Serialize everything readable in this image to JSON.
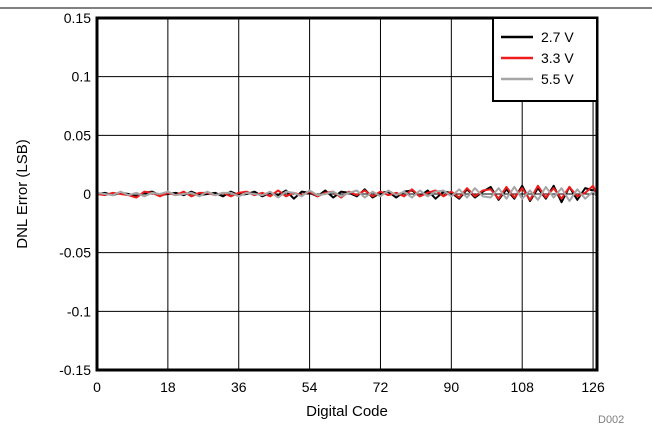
{
  "chart_data": {
    "type": "line",
    "xlabel": "Digital Code",
    "ylabel": "DNL Error (LSB)",
    "footnote": "D002",
    "xlim": [
      0,
      127
    ],
    "ylim": [
      -0.15,
      0.15
    ],
    "x_ticks": [
      0,
      18,
      36,
      54,
      72,
      90,
      108,
      126
    ],
    "y_ticks": [
      0.15,
      0.1,
      0.05,
      0,
      -0.05,
      -0.1,
      -0.15
    ],
    "y_tick_labels": [
      "0.15",
      "0.1",
      "0.05",
      "0",
      "-0.05",
      "-0.1",
      "-0.15"
    ],
    "grid": true,
    "legend_position": "top-right",
    "series": [
      {
        "name": "2.7 V",
        "color": "#000000",
        "x": [
          0,
          2,
          4,
          6,
          8,
          10,
          12,
          14,
          16,
          18,
          20,
          22,
          24,
          26,
          28,
          30,
          32,
          34,
          36,
          38,
          40,
          42,
          44,
          46,
          48,
          50,
          52,
          54,
          56,
          58,
          60,
          62,
          64,
          66,
          68,
          70,
          72,
          74,
          76,
          78,
          80,
          82,
          84,
          86,
          88,
          90,
          92,
          94,
          96,
          98,
          100,
          102,
          104,
          106,
          108,
          110,
          112,
          114,
          116,
          118,
          120,
          122,
          124,
          126,
          127
        ],
        "y": [
          0,
          0.001,
          -0.001,
          0.001,
          0,
          -0.002,
          0.001,
          0.002,
          -0.001,
          0,
          0.001,
          -0.001,
          0.002,
          -0.001,
          0,
          0.001,
          -0.002,
          0.002,
          -0.001,
          0,
          0.002,
          -0.002,
          0.001,
          -0.001,
          0.003,
          -0.004,
          0.002,
          0.001,
          -0.002,
          0.003,
          -0.003,
          0.002,
          0.001,
          -0.002,
          0.004,
          -0.003,
          0.001,
          0.002,
          -0.003,
          0.002,
          0.003,
          -0.002,
          0.003,
          -0.004,
          0.002,
          0.001,
          -0.004,
          0.004,
          -0.003,
          0.002,
          0.006,
          -0.005,
          0.004,
          -0.004,
          0.007,
          -0.006,
          0.005,
          -0.004,
          0.007,
          -0.007,
          0.006,
          -0.005,
          0.005,
          0.003,
          -0.002
        ]
      },
      {
        "name": "3.3 V",
        "color": "#ee1c1c",
        "x": [
          0,
          2,
          4,
          6,
          8,
          10,
          12,
          14,
          16,
          18,
          20,
          22,
          24,
          26,
          28,
          30,
          32,
          34,
          36,
          38,
          40,
          42,
          44,
          46,
          48,
          50,
          52,
          54,
          56,
          58,
          60,
          62,
          64,
          66,
          68,
          70,
          72,
          74,
          76,
          78,
          80,
          82,
          84,
          86,
          88,
          90,
          92,
          94,
          96,
          98,
          100,
          102,
          104,
          106,
          108,
          110,
          112,
          114,
          116,
          118,
          120,
          122,
          124,
          126,
          127
        ],
        "y": [
          0,
          -0.001,
          0.001,
          0,
          -0.001,
          -0.003,
          0.002,
          0.001,
          -0.002,
          0.001,
          -0.001,
          0.002,
          -0.002,
          0.001,
          0.001,
          -0.001,
          0.001,
          -0.002,
          0.001,
          0.002,
          -0.001,
          0.001,
          -0.002,
          0.003,
          -0.002,
          0.001,
          -0.001,
          0.002,
          -0.002,
          0.001,
          0.002,
          -0.003,
          0.002,
          -0.001,
          0.003,
          -0.002,
          0.002,
          -0.001,
          0.001,
          -0.002,
          0.004,
          -0.002,
          0.001,
          0.003,
          -0.002,
          0.002,
          -0.003,
          0.005,
          -0.002,
          0.003,
          0.004,
          -0.004,
          0.006,
          -0.003,
          0.005,
          -0.005,
          0.007,
          -0.003,
          0.005,
          -0.004,
          0.006,
          -0.002,
          0.001,
          0.007,
          0
        ]
      },
      {
        "name": "5.5 V",
        "color": "#a6a6a6",
        "x": [
          0,
          2,
          4,
          6,
          8,
          10,
          12,
          14,
          16,
          18,
          20,
          22,
          24,
          26,
          28,
          30,
          32,
          34,
          36,
          38,
          40,
          42,
          44,
          46,
          48,
          50,
          52,
          54,
          56,
          58,
          60,
          62,
          64,
          66,
          68,
          70,
          72,
          74,
          76,
          78,
          80,
          82,
          84,
          86,
          88,
          90,
          92,
          94,
          96,
          98,
          100,
          102,
          104,
          106,
          108,
          110,
          112,
          114,
          116,
          118,
          120,
          122,
          124,
          126,
          127
        ],
        "y": [
          0.001,
          0,
          -0.001,
          0.002,
          -0.001,
          0.001,
          -0.002,
          0.001,
          0,
          0.002,
          -0.001,
          0,
          0.001,
          -0.002,
          0.002,
          -0.001,
          0.001,
          0.001,
          -0.002,
          0.001,
          0,
          -0.001,
          0.002,
          -0.003,
          0.002,
          0.001,
          -0.002,
          0.003,
          -0.001,
          0,
          0.002,
          -0.002,
          0.001,
          0.003,
          -0.003,
          0.002,
          -0.002,
          0.003,
          -0.001,
          0.002,
          -0.003,
          0.003,
          -0.002,
          0.002,
          0.003,
          -0.002,
          0.004,
          -0.003,
          0.005,
          -0.002,
          -0.003,
          0.005,
          -0.004,
          0.006,
          -0.004,
          0.003,
          -0.005,
          0.006,
          -0.003,
          0.005,
          -0.006,
          0.004,
          -0.004,
          0.002,
          -0.001
        ]
      }
    ]
  }
}
